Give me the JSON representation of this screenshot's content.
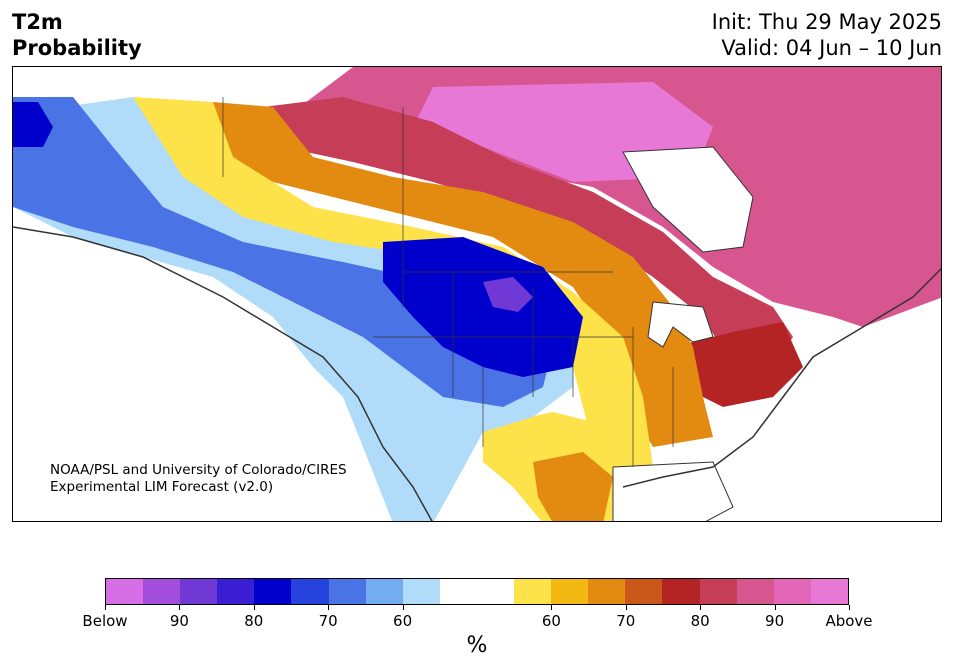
{
  "title": {
    "variable": "T2m",
    "subtitle": "Probability"
  },
  "header": {
    "init": "Init: Thu 29 May 2025",
    "valid": "Valid: 04 Jun – 10 Jun"
  },
  "credit": {
    "line1": "NOAA/PSL and University of Colorado/CIRES",
    "line2": "Experimental LIM Forecast (v2.0)"
  },
  "colorbar": {
    "colors": [
      "#d66fe6",
      "#a24ddb",
      "#7039d6",
      "#3a1ed3",
      "#0000cc",
      "#2542dd",
      "#4a74e6",
      "#73acf0",
      "#b0dcfa",
      "#ffffff",
      "#ffffff",
      "#fde24a",
      "#f4b813",
      "#e38b10",
      "#c9581a",
      "#b42424",
      "#c53d57",
      "#d8568f",
      "#e267b8",
      "#e878d6"
    ],
    "ticks": [
      "Below",
      "90",
      "80",
      "70",
      "60",
      "60",
      "70",
      "80",
      "90",
      "Above"
    ],
    "unit": "%"
  },
  "map": {
    "palette": {
      "below_blue": "#0000cc",
      "below_mid": "#4a74e6",
      "below_light": "#b0dcfa",
      "above_yellow": "#fde24a",
      "above_orange": "#e38b10",
      "above_red": "#b42424",
      "above_pink": "#d8568f",
      "above_magenta": "#e878d6",
      "outline": "#333333"
    }
  }
}
